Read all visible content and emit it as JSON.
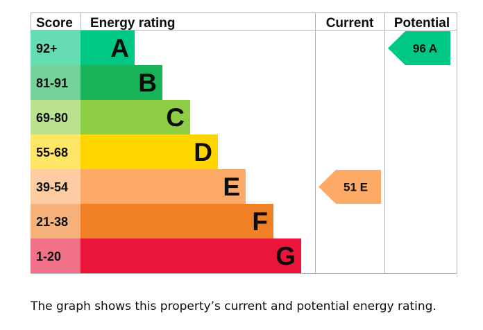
{
  "chart_data": {
    "type": "bar",
    "headers": {
      "score": "Score",
      "rating": "Energy rating",
      "current": "Current",
      "potential": "Potential"
    },
    "bands": [
      {
        "score": "92+",
        "letter": "A",
        "bar_color": "#00c781",
        "score_bg": "#66dcb3"
      },
      {
        "score": "81-91",
        "letter": "B",
        "bar_color": "#19b459",
        "score_bg": "#75d29b"
      },
      {
        "score": "69-80",
        "letter": "C",
        "bar_color": "#8dce46",
        "score_bg": "#bbe290"
      },
      {
        "score": "55-68",
        "letter": "D",
        "bar_color": "#ffd500",
        "score_bg": "#ffe666"
      },
      {
        "score": "39-54",
        "letter": "E",
        "bar_color": "#fcaa65",
        "score_bg": "#fdcca3"
      },
      {
        "score": "21-38",
        "letter": "F",
        "bar_color": "#ef8023",
        "score_bg": "#f5b37b"
      },
      {
        "score": "1-20",
        "letter": "G",
        "bar_color": "#e9153b",
        "score_bg": "#f27389"
      }
    ],
    "current": {
      "value": 51,
      "letter": "E",
      "label": "51 E",
      "color": "#fcaa65"
    },
    "potential": {
      "value": 96,
      "letter": "A",
      "label": "96 A",
      "color": "#00c781"
    }
  },
  "caption": "The graph shows this property’s current and potential energy rating."
}
